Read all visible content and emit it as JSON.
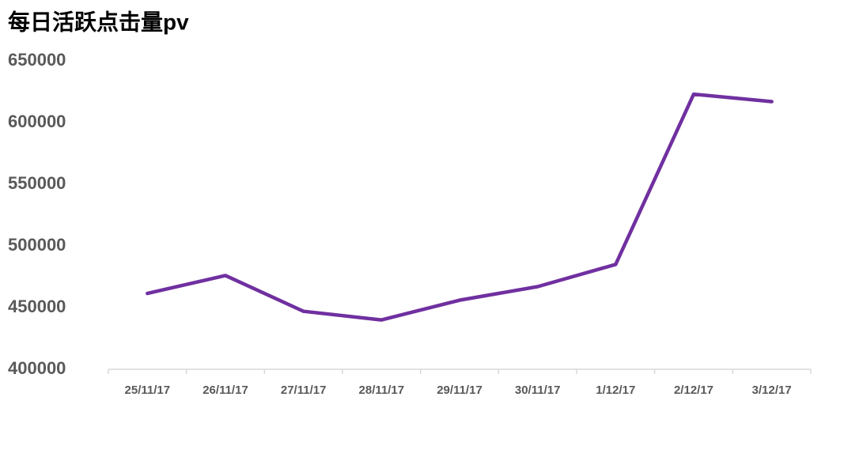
{
  "chart_data": {
    "type": "line",
    "title": "每日活跃点击量pv",
    "categories": [
      "25/11/17",
      "26/11/17",
      "27/11/17",
      "28/11/17",
      "29/11/17",
      "30/11/17",
      "1/12/17",
      "2/12/17",
      "3/12/17"
    ],
    "series": [
      {
        "name": "pv",
        "color": "#7030a0",
        "values": [
          461500,
          476000,
          447000,
          440000,
          456000,
          467000,
          485000,
          623000,
          617000
        ]
      }
    ],
    "ylim": [
      400000,
      650000
    ],
    "yticks": [
      400000,
      450000,
      500000,
      550000,
      600000,
      650000
    ],
    "grid": false
  }
}
